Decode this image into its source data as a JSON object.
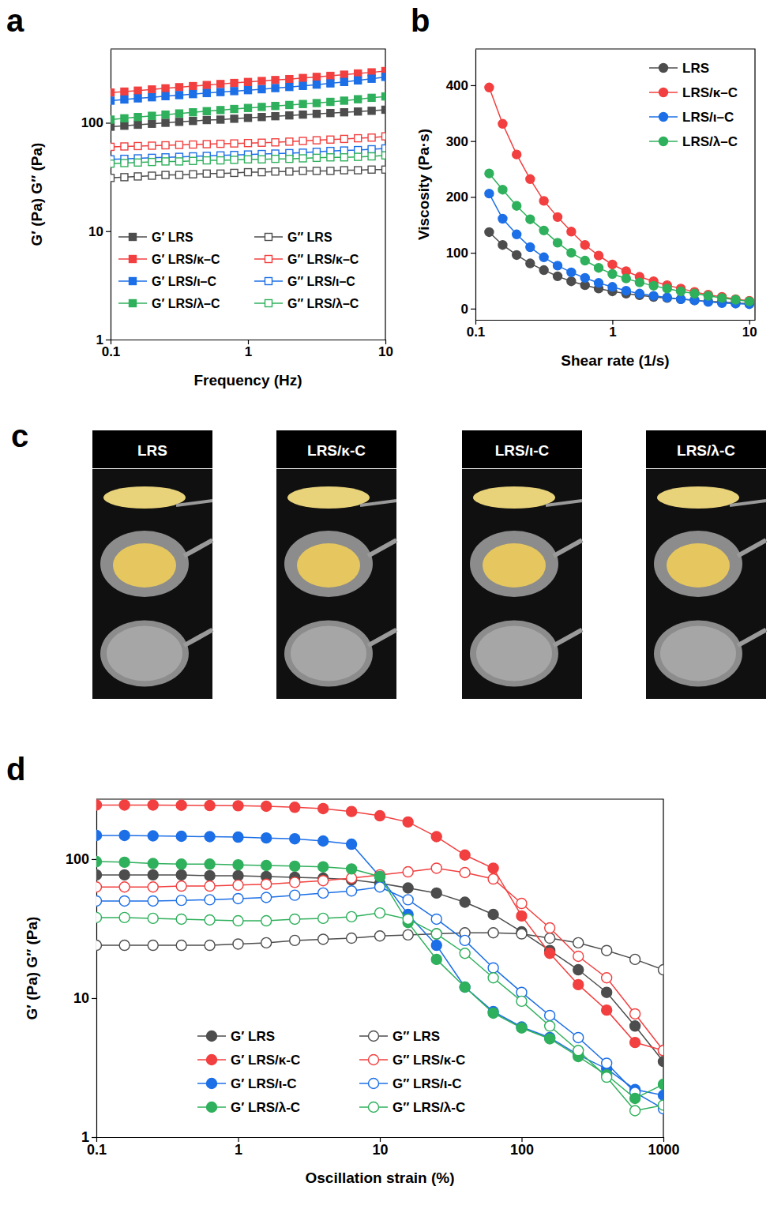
{
  "chart_data": [
    {
      "type": "line",
      "title": "a",
      "x_label": "Frequency (Hz)",
      "y_label": "G′ (Pa) G″ (Pa)",
      "log": true,
      "grid": false,
      "legend": "lower left",
      "xlim": [
        0.1,
        10
      ],
      "xticks": [
        0.1,
        1,
        10
      ],
      "ylim": [
        1,
        480
      ],
      "yticks": [
        1,
        10,
        100
      ],
      "x": [
        0.1,
        0.126,
        0.158,
        0.2,
        0.251,
        0.316,
        0.398,
        0.501,
        0.631,
        0.794,
        1,
        1.26,
        1.58,
        2,
        2.51,
        3.16,
        3.98,
        5.01,
        6.31,
        7.94,
        10
      ],
      "series": [
        {
          "name": "G′ LRS",
          "color": "#4d4d4d",
          "marker": "square",
          "values": [
            92,
            94,
            96,
            98,
            100,
            102,
            104,
            106,
            107,
            109,
            111,
            113,
            115,
            117,
            119,
            121,
            123,
            125,
            127,
            129,
            132
          ]
        },
        {
          "name": "G″ LRS",
          "color": "#4d4d4d",
          "marker": "open-square",
          "values": [
            31,
            31.5,
            32,
            32.5,
            33,
            33,
            33.5,
            34,
            34,
            34.5,
            35,
            35,
            35.5,
            35.5,
            36,
            36,
            36,
            36.5,
            36.5,
            37,
            37
          ]
        },
        {
          "name": "G′ LRS/κ–C",
          "color": "#f23f3f",
          "marker": "square",
          "values": [
            190,
            194,
            198,
            203,
            208,
            213,
            218,
            223,
            228,
            233,
            238,
            243,
            248,
            253,
            259,
            265,
            271,
            278,
            285,
            292,
            300
          ]
        },
        {
          "name": "G″ LRS/κ–C",
          "color": "#f23f3f",
          "marker": "open-square",
          "values": [
            60,
            60.5,
            61,
            61.5,
            62,
            62.5,
            63,
            63.5,
            64,
            64.5,
            65,
            65.5,
            66,
            67,
            68,
            69,
            70,
            71,
            72,
            73,
            75
          ]
        },
        {
          "name": "G′ LRS/ι–C",
          "color": "#1c6fe6",
          "marker": "square",
          "values": [
            160,
            164,
            168,
            172,
            176,
            180,
            184,
            188,
            192,
            196,
            200,
            204,
            209,
            214,
            219,
            225,
            231,
            238,
            246,
            255,
            265
          ]
        },
        {
          "name": "G″ LRS/ι–C",
          "color": "#1c6fe6",
          "marker": "open-square",
          "values": [
            46,
            46.5,
            47,
            47.5,
            48,
            48.5,
            49,
            49.5,
            50,
            50.5,
            51,
            51.5,
            52,
            52.5,
            53,
            54,
            55,
            55.5,
            56,
            57,
            58
          ]
        },
        {
          "name": "G′ LRS/λ–C",
          "color": "#2fb05c",
          "marker": "square",
          "values": [
            107,
            110,
            113,
            116,
            119,
            122,
            125,
            128,
            131,
            134,
            137,
            140,
            143,
            146,
            149,
            152,
            156,
            160,
            165,
            170,
            175
          ]
        },
        {
          "name": "G″ LRS/λ–C",
          "color": "#2fb05c",
          "marker": "open-square",
          "values": [
            42,
            42.5,
            43,
            43.5,
            44,
            44,
            44.5,
            45,
            45,
            45.5,
            46,
            46,
            46.5,
            46.5,
            47,
            47.5,
            48,
            48,
            48.5,
            49,
            50
          ]
        }
      ]
    },
    {
      "type": "line",
      "title": "b",
      "x_label": "Shear rate (1/s)",
      "y_label": "Viscosity (Pa·s)",
      "log": "x",
      "grid": false,
      "legend": "upper right",
      "xlim": [
        0.1,
        11
      ],
      "xticks": [
        0.1,
        1,
        10
      ],
      "ylim": [
        -20,
        465
      ],
      "yticks": [
        0,
        100,
        200,
        300,
        400
      ],
      "x": [
        0.126,
        0.158,
        0.2,
        0.251,
        0.316,
        0.398,
        0.501,
        0.631,
        0.794,
        1,
        1.26,
        1.58,
        2,
        2.51,
        3.16,
        3.98,
        5.01,
        6.31,
        7.94,
        10
      ],
      "series": [
        {
          "name": "LRS",
          "color": "#4d4d4d",
          "marker": "circle",
          "values": [
            137,
            114,
            96,
            81,
            69,
            58,
            49,
            42,
            36,
            31,
            27,
            24,
            21,
            19,
            17,
            15,
            13,
            12,
            10,
            9
          ]
        },
        {
          "name": "LRS/κ–C",
          "color": "#f23f3f",
          "marker": "circle",
          "values": [
            396,
            331,
            276,
            232,
            193,
            164,
            138,
            114,
            95,
            79,
            67,
            57,
            49,
            42,
            36,
            30,
            25,
            21,
            17,
            14
          ]
        },
        {
          "name": "LRS/ι–C",
          "color": "#1c6fe6",
          "marker": "circle",
          "values": [
            206,
            161,
            133,
            110,
            92,
            77,
            65,
            55,
            46,
            39,
            32,
            27,
            23,
            20,
            17,
            15,
            12,
            10,
            9,
            8
          ]
        },
        {
          "name": "LRS/λ–C",
          "color": "#2fb05c",
          "marker": "circle",
          "values": [
            242,
            213,
            184,
            160,
            140,
            118,
            100,
            86,
            73,
            62,
            54,
            47,
            41,
            36,
            31,
            27,
            23,
            19,
            16,
            13
          ]
        }
      ]
    },
    {
      "type": "line",
      "title": "d",
      "x_label": "Oscillation strain (%)",
      "y_label": "G′ (Pa) G″ (Pa)",
      "log": true,
      "grid": false,
      "legend": "lower left",
      "xlim": [
        0.1,
        1000
      ],
      "xticks": [
        0.1,
        1,
        10,
        100,
        1000
      ],
      "ylim": [
        1,
        270
      ],
      "yticks": [
        1,
        10,
        100
      ],
      "x": [
        0.1,
        0.158,
        0.251,
        0.398,
        0.631,
        1,
        1.58,
        2.51,
        3.98,
        6.31,
        10,
        15.8,
        25.1,
        39.8,
        63.1,
        100,
        158,
        251,
        398,
        631,
        1000
      ],
      "series": [
        {
          "name": "G′ LRS",
          "color": "#4d4d4d",
          "marker": "circle",
          "values": [
            77,
            77,
            77,
            77,
            76,
            76,
            75,
            74,
            73,
            71,
            67,
            62,
            57,
            49,
            40,
            30,
            22,
            16,
            11,
            6.3,
            3.5
          ]
        },
        {
          "name": "G″ LRS",
          "color": "#4d4d4d",
          "marker": "open-circle",
          "values": [
            24,
            24,
            24,
            24,
            24,
            24.5,
            25,
            26,
            26.5,
            27,
            28,
            28.5,
            29,
            29.5,
            29.5,
            29,
            27,
            25,
            22,
            19,
            16
          ]
        },
        {
          "name": "G′ LRS/κ-C",
          "color": "#f23f3f",
          "marker": "circle",
          "values": [
            245,
            245,
            245,
            244,
            243,
            242,
            240,
            236,
            231,
            220,
            205,
            185,
            145,
            107,
            86,
            39,
            21,
            12.5,
            8.2,
            4.8,
            4.2
          ]
        },
        {
          "name": "G″ LRS/κ-C",
          "color": "#f23f3f",
          "marker": "open-circle",
          "values": [
            63,
            63,
            63,
            64,
            64,
            65,
            66,
            68,
            70,
            73,
            77,
            81,
            86,
            80,
            72,
            48,
            32,
            20,
            14,
            7.7,
            4.2
          ]
        },
        {
          "name": "G′ LRS/ι-C",
          "color": "#1c6fe6",
          "marker": "circle",
          "values": [
            148,
            148,
            147,
            146,
            145,
            144,
            142,
            140,
            135,
            128,
            75,
            40,
            24,
            12,
            8,
            6.2,
            5.2,
            3.9,
            3.1,
            2.2,
            2
          ]
        },
        {
          "name": "G″ LRS/ι-C",
          "color": "#1c6fe6",
          "marker": "open-circle",
          "values": [
            50,
            50,
            50,
            50.5,
            51,
            52,
            53,
            55,
            57,
            59,
            63,
            51,
            37,
            26,
            16.5,
            11,
            7.5,
            5.2,
            3.4,
            2.1,
            1.6
          ]
        },
        {
          "name": "G′ LRS/λ-C",
          "color": "#2fb05c",
          "marker": "circle",
          "values": [
            96,
            95,
            93,
            92,
            92,
            91,
            90,
            89,
            88,
            85,
            75,
            35,
            19,
            12,
            7.8,
            6.1,
            5.1,
            3.8,
            2.8,
            1.9,
            2.4
          ]
        },
        {
          "name": "G″ LRS/λ-C",
          "color": "#2fb05c",
          "marker": "open-circle",
          "values": [
            38,
            38,
            37.5,
            37,
            36.5,
            36,
            36,
            37,
            37.5,
            38.5,
            41,
            37,
            29,
            21,
            14,
            9.5,
            6.3,
            4.2,
            2.7,
            1.55,
            1.7
          ]
        }
      ]
    }
  ],
  "panel_c": {
    "title": "c",
    "labels": [
      "LRS",
      "LRS/κ-C",
      "LRS/ι-C",
      "LRS/λ-C"
    ]
  }
}
